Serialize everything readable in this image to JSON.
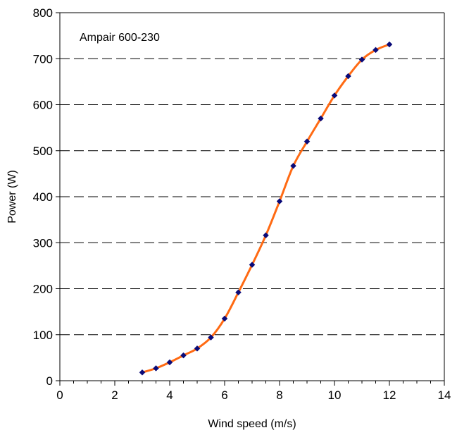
{
  "chart_data": {
    "type": "line",
    "title": "",
    "annotation": "Ampair 600-230",
    "xlabel": "Wind speed (m/s)",
    "ylabel": "Power (W)",
    "xlim": [
      0,
      14
    ],
    "ylim": [
      0,
      800
    ],
    "x_ticks": [
      "0",
      "2",
      "4",
      "6",
      "8",
      "10",
      "12",
      "14"
    ],
    "y_ticks": [
      "0",
      "100",
      "200",
      "300",
      "400",
      "500",
      "600",
      "700",
      "800"
    ],
    "grid": "horizontal dashed",
    "legend": "none",
    "series": [
      {
        "line_color": "#ff6a13",
        "marker_color": "#0a0a78",
        "marker": "diamond",
        "x": [
          3,
          3.5,
          4,
          4.5,
          5,
          5.5,
          6,
          6.5,
          7,
          7.5,
          8,
          8.5,
          9,
          9.5,
          10,
          10.5,
          11,
          11.5,
          12
        ],
        "y": [
          18,
          27,
          40,
          55,
          70,
          94,
          135,
          192,
          252,
          316,
          390,
          467,
          520,
          570,
          620,
          662,
          698,
          719,
          731
        ]
      }
    ]
  }
}
